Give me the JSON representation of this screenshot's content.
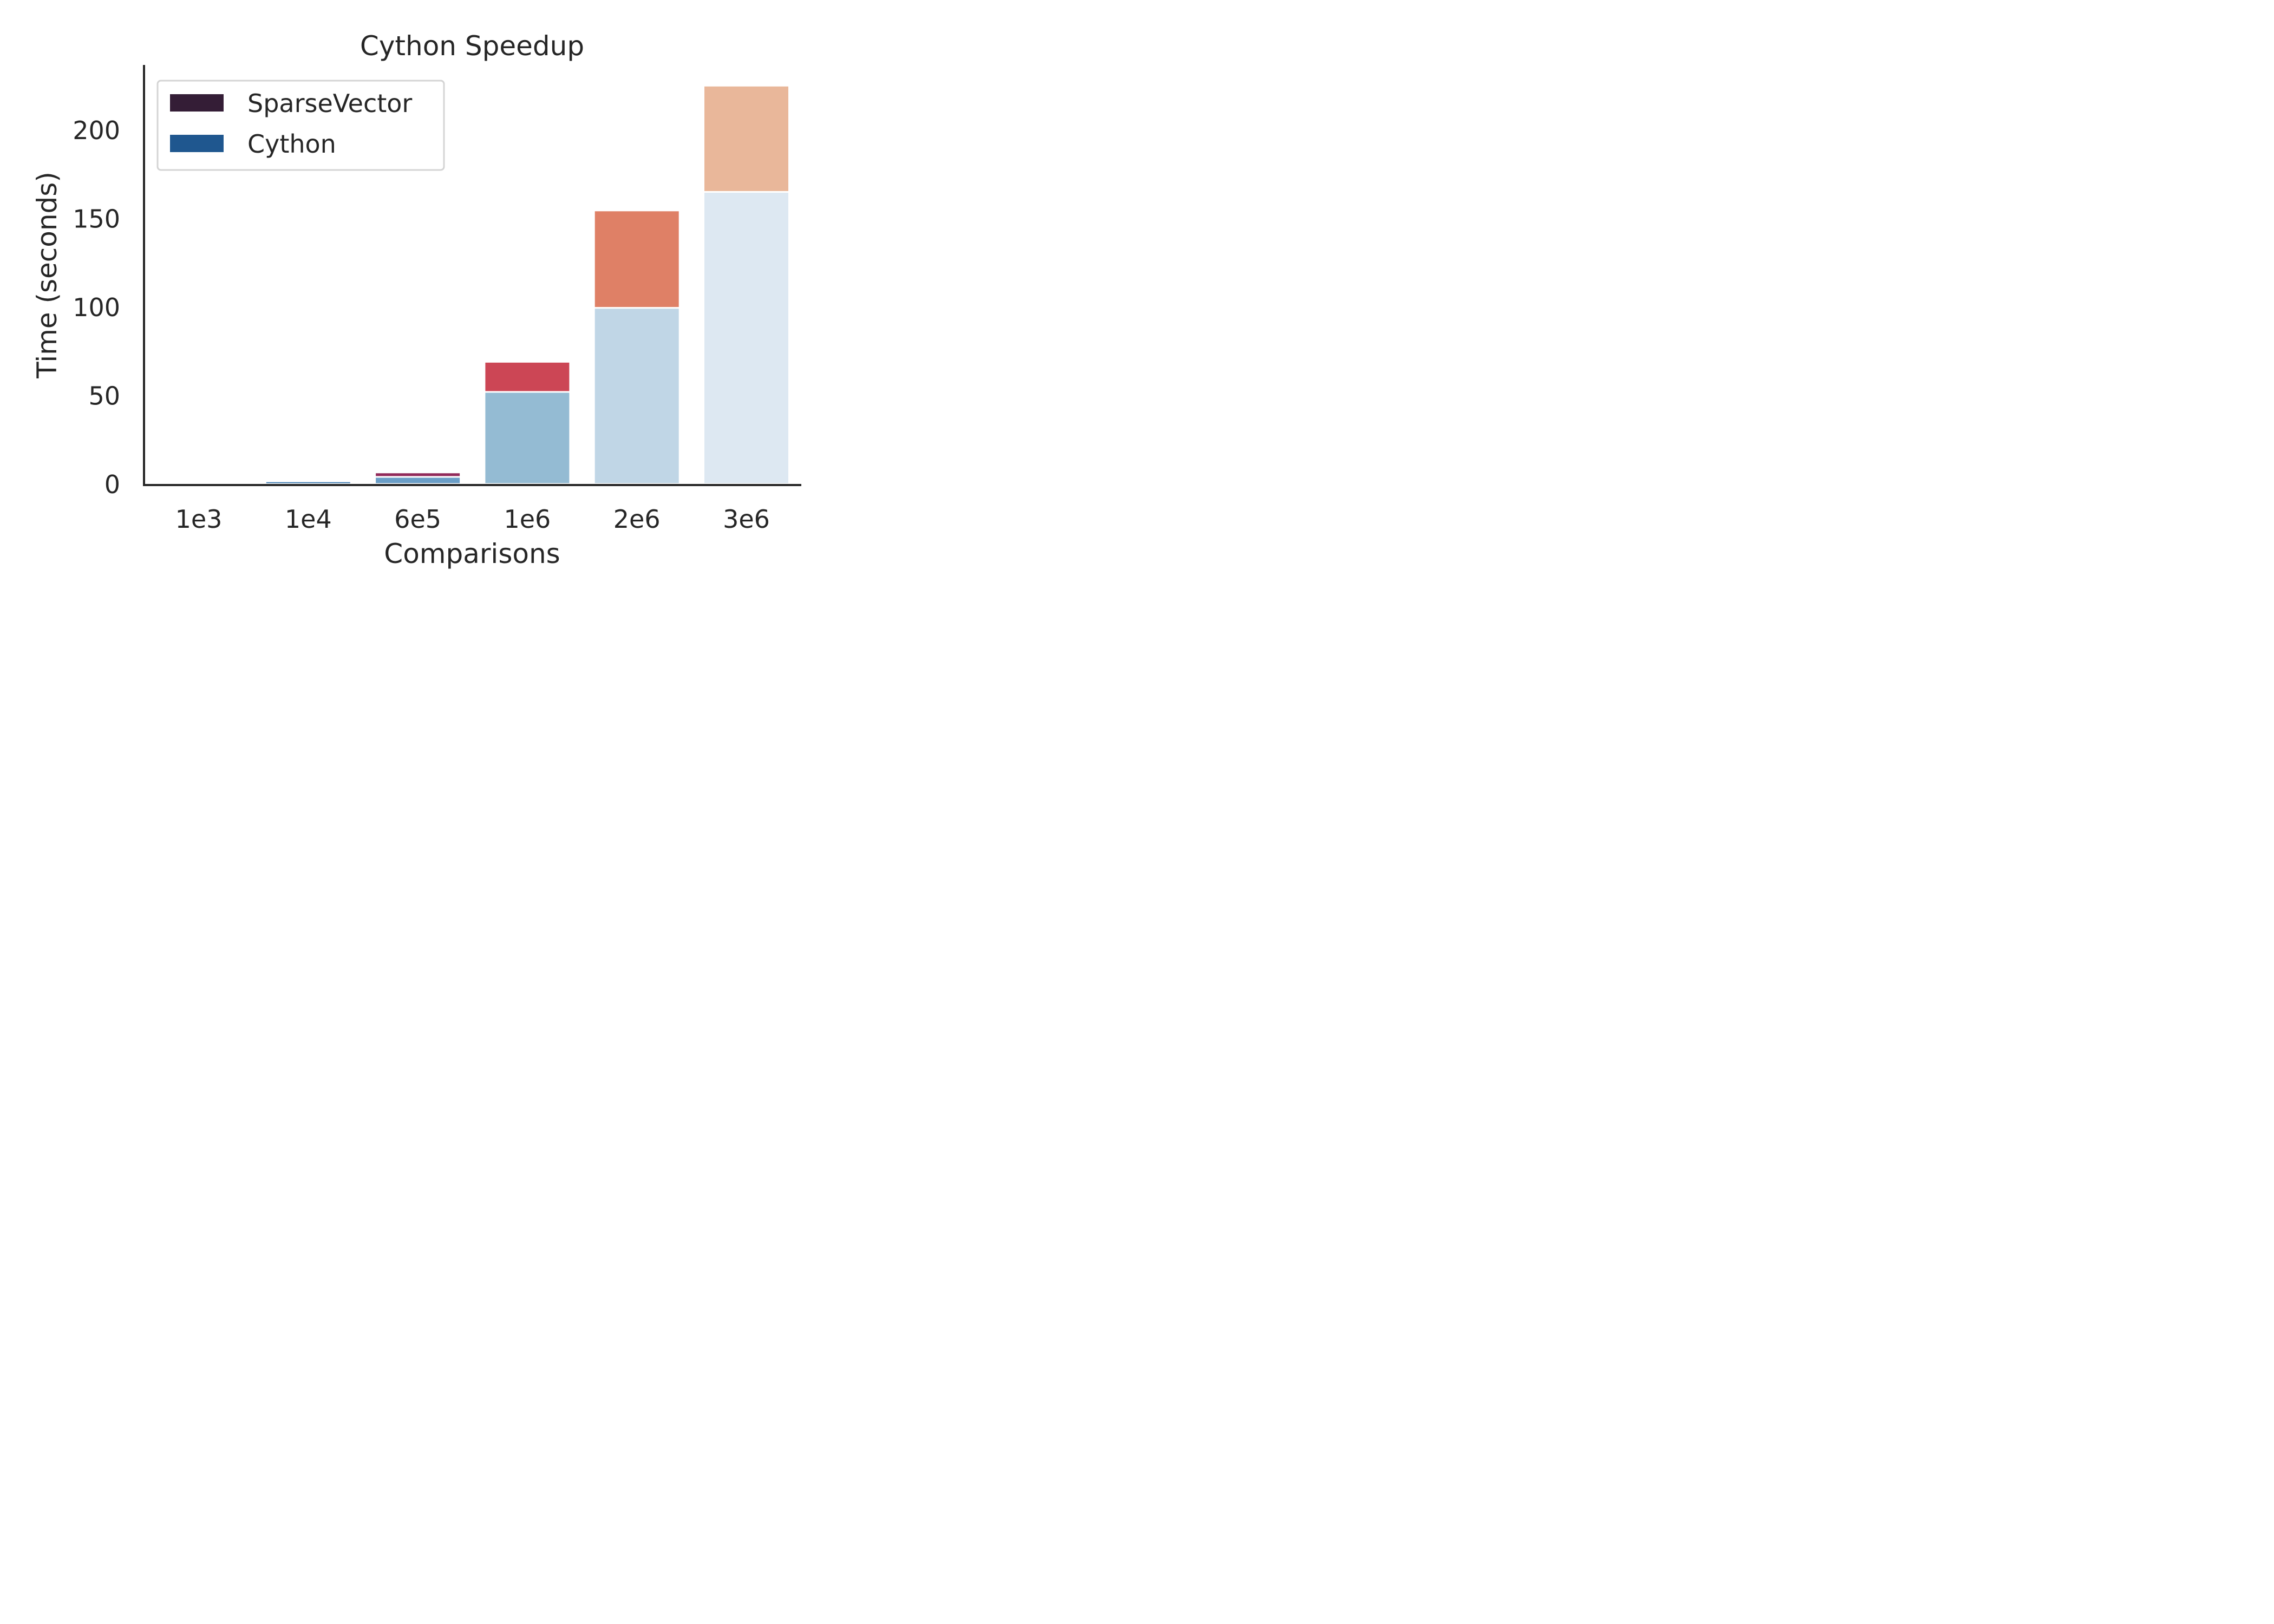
{
  "chart_data": {
    "type": "bar",
    "stacked": true,
    "title": "Cython Speedup",
    "xlabel": "Comparisons",
    "ylabel": "Time (seconds)",
    "categories": [
      "1e3",
      "1e4",
      "6e5",
      "1e6",
      "2e6",
      "3e6"
    ],
    "ylim": [
      0,
      237
    ],
    "yticks": [
      0,
      50,
      100,
      150,
      200
    ],
    "grid": false,
    "legend_position": "top-left",
    "series": [
      {
        "name": "Cython",
        "role": "bottom",
        "values": [
          0.8,
          1.5,
          4.0,
          52.0,
          99.5,
          165.0
        ],
        "colors": [
          "#1e5a92",
          "#3a79af",
          "#6a9ec7",
          "#94bbd3",
          "#c0d6e6",
          "#dde8f2"
        ]
      },
      {
        "name": "SparseVector",
        "role": "top",
        "values": [
          0.2,
          0.3,
          2.5,
          17.0,
          55.0,
          60.0
        ],
        "colors": [
          "#3a1f3d",
          "#5e2048",
          "#922a5a",
          "#cc4655",
          "#df8066",
          "#e9b79a"
        ]
      }
    ],
    "legend": [
      {
        "label": "SparseVector",
        "color": "#341d36"
      },
      {
        "label": "Cython",
        "color": "#1f578f"
      }
    ]
  }
}
